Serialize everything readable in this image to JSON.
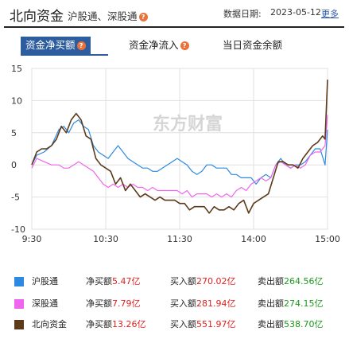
{
  "header": {
    "title": "北向资金",
    "subtitle": "沪股通、深股通",
    "help_glyph": "?",
    "date_label": "数据日期:",
    "date_value": "2023-05-12",
    "more_link": "更多"
  },
  "tabs": [
    {
      "label": "资金净买额",
      "active": true
    },
    {
      "label": "资金净流入",
      "active": false
    },
    {
      "label": "当日资金余额",
      "active": false
    }
  ],
  "watermark": "东方财富",
  "colors": {
    "hgt": "#2e8ae0",
    "sgt": "#ee66ee",
    "north": "#5c3a1a",
    "grid": "#e0e0e0",
    "accent": "#2d5d9f",
    "positive": "#e02020",
    "negative": "#1a9a1a"
  },
  "chart_data": {
    "type": "line",
    "title": "",
    "xlabel": "",
    "ylabel": "",
    "units": "亿",
    "xlim": [
      0,
      240
    ],
    "ylim": [
      -10,
      15
    ],
    "x_ticks": [
      {
        "label": "9:30",
        "x": 0
      },
      {
        "label": "10:30",
        "x": 60
      },
      {
        "label": "11:30",
        "x": 120
      },
      {
        "label": "14:00",
        "x": 180
      },
      {
        "label": "15:00",
        "x": 240
      }
    ],
    "y_ticks": [
      15,
      10,
      5,
      0,
      -5,
      -10
    ],
    "grid": true,
    "series": [
      {
        "name": "沪股通",
        "color_key": "hgt",
        "points": [
          [
            0,
            0
          ],
          [
            4,
            1.5
          ],
          [
            10,
            2
          ],
          [
            16,
            3
          ],
          [
            22,
            5.5
          ],
          [
            26,
            6
          ],
          [
            30,
            5
          ],
          [
            34,
            6.5
          ],
          [
            38,
            7
          ],
          [
            42,
            6
          ],
          [
            46,
            5.5
          ],
          [
            50,
            3
          ],
          [
            54,
            2
          ],
          [
            58,
            1.5
          ],
          [
            62,
            1
          ],
          [
            66,
            2
          ],
          [
            70,
            3
          ],
          [
            74,
            2
          ],
          [
            78,
            1
          ],
          [
            82,
            0.5
          ],
          [
            86,
            0
          ],
          [
            90,
            -0.5
          ],
          [
            94,
            -0.5
          ],
          [
            98,
            -1
          ],
          [
            102,
            -1
          ],
          [
            106,
            -0.5
          ],
          [
            110,
            0
          ],
          [
            114,
            0.5
          ],
          [
            118,
            1
          ],
          [
            122,
            0.5
          ],
          [
            126,
            0
          ],
          [
            130,
            -1
          ],
          [
            134,
            -1.5
          ],
          [
            138,
            -1
          ],
          [
            142,
            0
          ],
          [
            146,
            0
          ],
          [
            150,
            -0.5
          ],
          [
            154,
            -0.5
          ],
          [
            158,
            -0.5
          ],
          [
            162,
            -1.5
          ],
          [
            166,
            -1.5
          ],
          [
            170,
            -2
          ],
          [
            174,
            -2
          ],
          [
            178,
            -2
          ],
          [
            182,
            -3
          ],
          [
            186,
            -2
          ],
          [
            190,
            -1.5
          ],
          [
            194,
            -2
          ],
          [
            198,
            0
          ],
          [
            202,
            1
          ],
          [
            206,
            0
          ],
          [
            210,
            -0.5
          ],
          [
            214,
            0
          ],
          [
            218,
            0
          ],
          [
            222,
            0.5
          ],
          [
            226,
            1.5
          ],
          [
            230,
            2.5
          ],
          [
            234,
            2.5
          ],
          [
            238,
            0
          ],
          [
            240,
            5.47
          ]
        ]
      },
      {
        "name": "深股通",
        "color_key": "sgt",
        "points": [
          [
            0,
            -0.5
          ],
          [
            4,
            1
          ],
          [
            10,
            0.5
          ],
          [
            16,
            0
          ],
          [
            22,
            0
          ],
          [
            26,
            -0.5
          ],
          [
            30,
            -0.5
          ],
          [
            34,
            0
          ],
          [
            38,
            0.5
          ],
          [
            42,
            0
          ],
          [
            46,
            -0.5
          ],
          [
            50,
            -1
          ],
          [
            54,
            -2
          ],
          [
            58,
            -3
          ],
          [
            62,
            -3.5
          ],
          [
            66,
            -3
          ],
          [
            70,
            -3.5
          ],
          [
            74,
            -3
          ],
          [
            78,
            -3.5
          ],
          [
            82,
            -3
          ],
          [
            86,
            -3.5
          ],
          [
            90,
            -3.5
          ],
          [
            94,
            -4
          ],
          [
            98,
            -3.5
          ],
          [
            102,
            -4
          ],
          [
            106,
            -4
          ],
          [
            110,
            -4
          ],
          [
            114,
            -4
          ],
          [
            118,
            -4
          ],
          [
            122,
            -4.5
          ],
          [
            126,
            -4
          ],
          [
            130,
            -5
          ],
          [
            134,
            -4.5
          ],
          [
            138,
            -4.5
          ],
          [
            142,
            -4.5
          ],
          [
            146,
            -5
          ],
          [
            150,
            -4.5
          ],
          [
            154,
            -5
          ],
          [
            158,
            -4.5
          ],
          [
            162,
            -5
          ],
          [
            166,
            -4
          ],
          [
            170,
            -3.5
          ],
          [
            174,
            -4
          ],
          [
            178,
            -3
          ],
          [
            182,
            -2.5
          ],
          [
            186,
            -2
          ],
          [
            190,
            -2.5
          ],
          [
            194,
            -2
          ],
          [
            198,
            0
          ],
          [
            202,
            0.5
          ],
          [
            206,
            0
          ],
          [
            210,
            -0.5
          ],
          [
            214,
            0
          ],
          [
            218,
            -0.5
          ],
          [
            222,
            0
          ],
          [
            226,
            1.5
          ],
          [
            230,
            2
          ],
          [
            234,
            2
          ],
          [
            238,
            3
          ],
          [
            240,
            7.79
          ]
        ]
      },
      {
        "name": "北向资金",
        "color_key": "north",
        "points": [
          [
            0,
            0
          ],
          [
            4,
            2
          ],
          [
            8,
            2.5
          ],
          [
            12,
            2.5
          ],
          [
            16,
            3
          ],
          [
            20,
            4
          ],
          [
            24,
            6
          ],
          [
            28,
            5
          ],
          [
            32,
            7
          ],
          [
            36,
            8
          ],
          [
            40,
            7
          ],
          [
            44,
            4.5
          ],
          [
            48,
            4
          ],
          [
            52,
            1
          ],
          [
            56,
            0
          ],
          [
            60,
            -0.5
          ],
          [
            64,
            -1
          ],
          [
            68,
            -3
          ],
          [
            72,
            -2
          ],
          [
            76,
            -4
          ],
          [
            80,
            -3
          ],
          [
            84,
            -4
          ],
          [
            88,
            -5
          ],
          [
            92,
            -4.5
          ],
          [
            96,
            -5
          ],
          [
            100,
            -5.5
          ],
          [
            104,
            -5
          ],
          [
            108,
            -5.5
          ],
          [
            112,
            -5.5
          ],
          [
            116,
            -5.5
          ],
          [
            120,
            -6
          ],
          [
            124,
            -6
          ],
          [
            128,
            -7
          ],
          [
            132,
            -6.5
          ],
          [
            136,
            -6.5
          ],
          [
            140,
            -6.5
          ],
          [
            144,
            -7.5
          ],
          [
            148,
            -6.5
          ],
          [
            152,
            -7
          ],
          [
            156,
            -7
          ],
          [
            160,
            -6.5
          ],
          [
            164,
            -7
          ],
          [
            168,
            -6
          ],
          [
            172,
            -5.5
          ],
          [
            176,
            -7.5
          ],
          [
            180,
            -6
          ],
          [
            184,
            -5.5
          ],
          [
            188,
            -5
          ],
          [
            192,
            -4.5
          ],
          [
            196,
            -2
          ],
          [
            200,
            0.5
          ],
          [
            204,
            0.5
          ],
          [
            208,
            0
          ],
          [
            212,
            0
          ],
          [
            216,
            -0.5
          ],
          [
            220,
            1
          ],
          [
            224,
            2
          ],
          [
            228,
            3
          ],
          [
            232,
            3.5
          ],
          [
            236,
            4.5
          ],
          [
            238,
            4
          ],
          [
            240,
            13.26
          ]
        ]
      }
    ]
  },
  "legend": {
    "net_label": "净买额",
    "buy_label": "买入额",
    "sell_label": "卖出额",
    "rows": [
      {
        "name": "沪股通",
        "color_key": "hgt",
        "net": "5.47亿",
        "buy": "270.02亿",
        "sell": "264.56亿"
      },
      {
        "name": "深股通",
        "color_key": "sgt",
        "net": "7.79亿",
        "buy": "281.94亿",
        "sell": "274.15亿"
      },
      {
        "name": "北向资金",
        "color_key": "north",
        "net": "13.26亿",
        "buy": "551.97亿",
        "sell": "538.70亿"
      }
    ]
  }
}
